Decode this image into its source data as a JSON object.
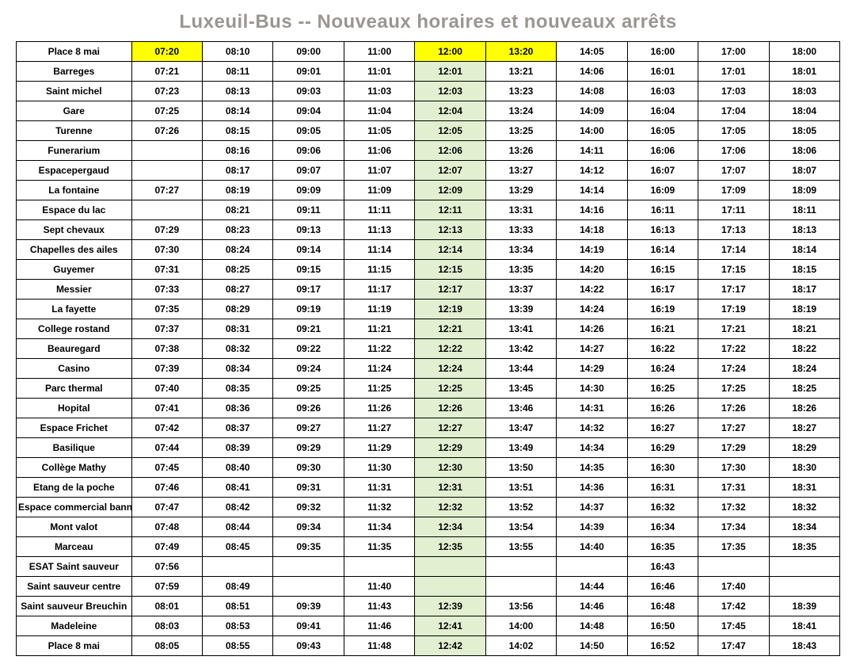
{
  "title": "Luxeuil-Bus -- Nouveaux horaires et nouveaux arrêts",
  "colors": {
    "title_color": "#9a9691",
    "highlight_yellow": "#ffff00",
    "highlight_green": "#e2efd0",
    "border": "#000000",
    "background": "#ffffff",
    "text": "#000000"
  },
  "table": {
    "col_widths_pct": [
      14.0,
      8.6,
      8.6,
      8.6,
      8.6,
      8.6,
      8.6,
      8.6,
      8.6,
      8.6,
      8.6
    ],
    "font_size_cell": 12,
    "font_size_title": 24,
    "header_row_index": 0,
    "highlight": {
      "yellow_cells": [
        [
          0,
          1
        ],
        [
          0,
          5
        ],
        [
          0,
          6
        ]
      ],
      "green_col": 5,
      "green_col_from_row": 1,
      "green_col_skip_empty": true
    },
    "stops": [
      "Place 8 mai",
      "Barreges",
      "Saint michel",
      "Gare",
      "Turenne",
      "Funerarium",
      "Espacepergaud",
      "La fontaine",
      "Espace du lac",
      "Sept chevaux",
      "Chapelles des ailes",
      "Guyemer",
      "Messier",
      "La fayette",
      "College rostand",
      "Beauregard",
      "Casino",
      "Parc thermal",
      "Hopital",
      "Espace Frichet",
      "Basilique",
      "Collège Mathy",
      "Etang de la poche",
      "Espace commercial banney",
      "Mont valot",
      "Marceau",
      "ESAT Saint sauveur",
      "Saint sauveur centre",
      "Saint sauveur Breuchin",
      "Madeleine",
      "Place 8 mai"
    ],
    "runs": [
      [
        "07:20",
        "08:10",
        "09:00",
        "11:00",
        "12:00",
        "13:20",
        "14:05",
        "16:00",
        "17:00",
        "18:00"
      ],
      [
        "07:21",
        "08:11",
        "09:01",
        "11:01",
        "12:01",
        "13:21",
        "14:06",
        "16:01",
        "17:01",
        "18:01"
      ],
      [
        "07:23",
        "08:13",
        "09:03",
        "11:03",
        "12:03",
        "13:23",
        "14:08",
        "16:03",
        "17:03",
        "18:03"
      ],
      [
        "07:25",
        "08:14",
        "09:04",
        "11:04",
        "12:04",
        "13:24",
        "14:09",
        "16:04",
        "17:04",
        "18:04"
      ],
      [
        "07:26",
        "08:15",
        "09:05",
        "11:05",
        "12:05",
        "13:25",
        "14:00",
        "16:05",
        "17:05",
        "18:05"
      ],
      [
        "",
        "08:16",
        "09:06",
        "11:06",
        "12:06",
        "13:26",
        "14:11",
        "16:06",
        "17:06",
        "18:06"
      ],
      [
        "",
        "08:17",
        "09:07",
        "11:07",
        "12:07",
        "13:27",
        "14:12",
        "16:07",
        "17:07",
        "18:07"
      ],
      [
        "07:27",
        "08:19",
        "09:09",
        "11:09",
        "12:09",
        "13:29",
        "14:14",
        "16:09",
        "17:09",
        "18:09"
      ],
      [
        "",
        "08:21",
        "09:11",
        "11:11",
        "12:11",
        "13:31",
        "14:16",
        "16:11",
        "17:11",
        "18:11"
      ],
      [
        "07:29",
        "08:23",
        "09:13",
        "11:13",
        "12:13",
        "13:33",
        "14:18",
        "16:13",
        "17:13",
        "18:13"
      ],
      [
        "07:30",
        "08:24",
        "09:14",
        "11:14",
        "12:14",
        "13:34",
        "14:19",
        "16:14",
        "17:14",
        "18:14"
      ],
      [
        "07:31",
        "08:25",
        "09:15",
        "11:15",
        "12:15",
        "13:35",
        "14:20",
        "16:15",
        "17:15",
        "18:15"
      ],
      [
        "07:33",
        "08:27",
        "09:17",
        "11:17",
        "12:17",
        "13:37",
        "14:22",
        "16:17",
        "17:17",
        "18:17"
      ],
      [
        "07:35",
        "08:29",
        "09:19",
        "11:19",
        "12:19",
        "13:39",
        "14:24",
        "16:19",
        "17:19",
        "18:19"
      ],
      [
        "07:37",
        "08:31",
        "09:21",
        "11:21",
        "12:21",
        "13:41",
        "14:26",
        "16:21",
        "17:21",
        "18:21"
      ],
      [
        "07:38",
        "08:32",
        "09:22",
        "11:22",
        "12:22",
        "13:42",
        "14:27",
        "16:22",
        "17:22",
        "18:22"
      ],
      [
        "07:39",
        "08:34",
        "09:24",
        "11:24",
        "12:24",
        "13:44",
        "14:29",
        "16:24",
        "17:24",
        "18:24"
      ],
      [
        "07:40",
        "08:35",
        "09:25",
        "11:25",
        "12:25",
        "13:45",
        "14:30",
        "16:25",
        "17:25",
        "18:25"
      ],
      [
        "07:41",
        "08:36",
        "09:26",
        "11:26",
        "12:26",
        "13:46",
        "14:31",
        "16:26",
        "17:26",
        "18:26"
      ],
      [
        "07:42",
        "08:37",
        "09:27",
        "11:27",
        "12:27",
        "13:47",
        "14:32",
        "16:27",
        "17:27",
        "18:27"
      ],
      [
        "07:44",
        "08:39",
        "09:29",
        "11:29",
        "12:29",
        "13:49",
        "14:34",
        "16:29",
        "17:29",
        "18:29"
      ],
      [
        "07:45",
        "08:40",
        "09:30",
        "11:30",
        "12:30",
        "13:50",
        "14:35",
        "16:30",
        "17:30",
        "18:30"
      ],
      [
        "07:46",
        "08:41",
        "09:31",
        "11:31",
        "12:31",
        "13:51",
        "14:36",
        "16:31",
        "17:31",
        "18:31"
      ],
      [
        "07:47",
        "08:42",
        "09:32",
        "11:32",
        "12:32",
        "13:52",
        "14:37",
        "16:32",
        "17:32",
        "18:32"
      ],
      [
        "07:48",
        "08:44",
        "09:34",
        "11:34",
        "12:34",
        "13:54",
        "14:39",
        "16:34",
        "17:34",
        "18:34"
      ],
      [
        "07:49",
        "08:45",
        "09:35",
        "11:35",
        "12:35",
        "13:55",
        "14:40",
        "16:35",
        "17:35",
        "18:35"
      ],
      [
        "07:56",
        "",
        "",
        "",
        "",
        "",
        "",
        "16:43",
        "",
        ""
      ],
      [
        "07:59",
        "08:49",
        "",
        "11:40",
        "",
        "",
        "14:44",
        "16:46",
        "17:40",
        ""
      ],
      [
        "08:01",
        "08:51",
        "09:39",
        "11:43",
        "12:39",
        "13:56",
        "14:46",
        "16:48",
        "17:42",
        "18:39"
      ],
      [
        "08:03",
        "08:53",
        "09:41",
        "11:46",
        "12:41",
        "14:00",
        "14:48",
        "16:50",
        "17:45",
        "18:41"
      ],
      [
        "08:05",
        "08:55",
        "09:43",
        "11:48",
        "12:42",
        "14:02",
        "14:50",
        "16:52",
        "17:47",
        "18:43"
      ]
    ]
  }
}
